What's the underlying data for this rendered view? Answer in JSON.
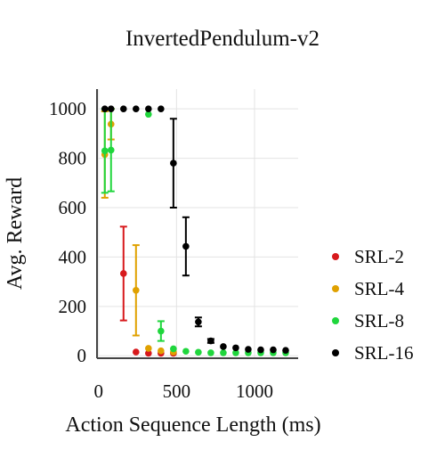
{
  "chart_data": {
    "type": "scatter",
    "title": "InvertedPendulum-v2",
    "xlabel": "Action Sequence Length (ms)",
    "ylabel": "Avg. Reward",
    "xlim": [
      -10,
      1280
    ],
    "ylim": [
      -10,
      1080
    ],
    "xticks": [
      0,
      500,
      1000
    ],
    "yticks": [
      0,
      200,
      400,
      600,
      800,
      1000
    ],
    "grid": true,
    "error_bars": true,
    "legend_position": "right",
    "series": [
      {
        "name": "SRL-2",
        "color": "#d7191c",
        "points": [
          {
            "x": 160,
            "y": 333,
            "err": 190
          },
          {
            "x": 240,
            "y": 15,
            "err": 0
          },
          {
            "x": 320,
            "y": 10,
            "err": 0
          },
          {
            "x": 400,
            "y": 10,
            "err": 0
          },
          {
            "x": 480,
            "y": 10,
            "err": 0
          }
        ]
      },
      {
        "name": "SRL-4",
        "color": "#e0a100",
        "points": [
          {
            "x": 40,
            "y": 815,
            "err": 175
          },
          {
            "x": 80,
            "y": 938,
            "err": 62
          },
          {
            "x": 240,
            "y": 265,
            "err": 183
          },
          {
            "x": 320,
            "y": 30,
            "err": 0
          },
          {
            "x": 400,
            "y": 20,
            "err": 0
          },
          {
            "x": 480,
            "y": 15,
            "err": 0
          }
        ]
      },
      {
        "name": "SRL-8",
        "color": "#1fd63c",
        "points": [
          {
            "x": 40,
            "y": 830,
            "err": 170
          },
          {
            "x": 80,
            "y": 833,
            "err": 167
          },
          {
            "x": 320,
            "y": 978,
            "err": 0
          },
          {
            "x": 400,
            "y": 100,
            "err": 40
          },
          {
            "x": 480,
            "y": 28,
            "err": 0
          },
          {
            "x": 560,
            "y": 18,
            "err": 0
          },
          {
            "x": 640,
            "y": 14,
            "err": 0
          },
          {
            "x": 720,
            "y": 12,
            "err": 0
          },
          {
            "x": 800,
            "y": 12,
            "err": 0
          },
          {
            "x": 880,
            "y": 12,
            "err": 0
          },
          {
            "x": 960,
            "y": 12,
            "err": 0
          },
          {
            "x": 1040,
            "y": 12,
            "err": 0
          },
          {
            "x": 1120,
            "y": 12,
            "err": 0
          },
          {
            "x": 1200,
            "y": 12,
            "err": 0
          }
        ]
      },
      {
        "name": "SRL-16",
        "color": "#000000",
        "points": [
          {
            "x": 40,
            "y": 1000,
            "err": 0
          },
          {
            "x": 80,
            "y": 1000,
            "err": 0
          },
          {
            "x": 160,
            "y": 1000,
            "err": 0
          },
          {
            "x": 240,
            "y": 1000,
            "err": 0
          },
          {
            "x": 320,
            "y": 1000,
            "err": 0
          },
          {
            "x": 400,
            "y": 1000,
            "err": 0
          },
          {
            "x": 480,
            "y": 780,
            "err": 180
          },
          {
            "x": 560,
            "y": 443,
            "err": 118
          },
          {
            "x": 640,
            "y": 137,
            "err": 18
          },
          {
            "x": 720,
            "y": 60,
            "err": 8
          },
          {
            "x": 800,
            "y": 37,
            "err": 0
          },
          {
            "x": 880,
            "y": 32,
            "err": 0
          },
          {
            "x": 960,
            "y": 26,
            "err": 0
          },
          {
            "x": 1040,
            "y": 24,
            "err": 0
          },
          {
            "x": 1120,
            "y": 24,
            "err": 0
          },
          {
            "x": 1200,
            "y": 22,
            "err": 0
          }
        ]
      }
    ]
  }
}
